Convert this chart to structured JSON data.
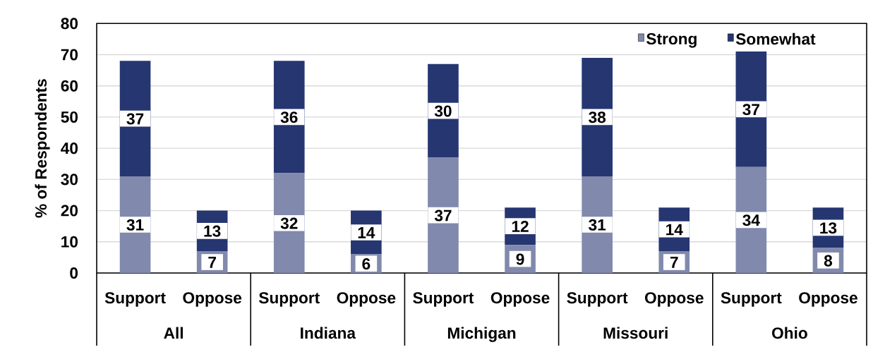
{
  "chart_data": {
    "type": "bar",
    "stacked": true,
    "ylabel": "% of Respondents",
    "categories": [
      "Support",
      "Oppose",
      "Support",
      "Oppose",
      "Support",
      "Oppose",
      "Support",
      "Oppose",
      "Support",
      "Oppose"
    ],
    "annotations": [
      "All",
      "Indiana",
      "Michigan",
      "Missouri",
      "Ohio"
    ],
    "series": [
      {
        "name": "Strong",
        "color": "#818aad",
        "values": [
          31,
          7,
          32,
          6,
          37,
          9,
          31,
          7,
          34,
          8
        ]
      },
      {
        "name": "Somewhat",
        "color": "#263671",
        "values": [
          37,
          13,
          36,
          14,
          30,
          12,
          38,
          14,
          37,
          13
        ]
      }
    ],
    "ylim": [
      0,
      80
    ],
    "yticks": [
      0,
      10,
      20,
      30,
      40,
      50,
      60,
      70,
      80
    ],
    "grid": "y",
    "legend": "top right",
    "data_labels": true
  }
}
